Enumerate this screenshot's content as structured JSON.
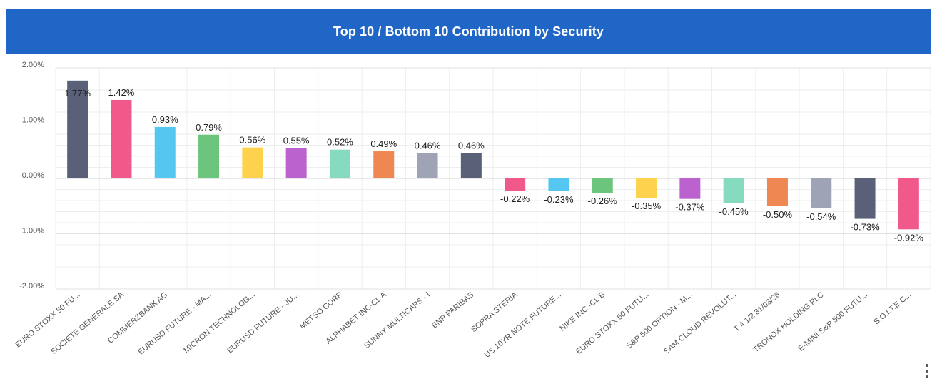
{
  "header": {
    "title": "Top 10 / Bottom 10 Contribution by Security"
  },
  "chart_data": {
    "type": "bar",
    "title": "Top 10 / Bottom 10 Contribution by Security",
    "xlabel": "",
    "ylabel": "",
    "ylim": [
      -2.0,
      2.0
    ],
    "yticks": [
      2.0,
      1.0,
      0.0,
      -1.0,
      -2.0
    ],
    "ytick_labels": [
      "2.00%",
      "1.00%",
      "0.00%",
      "-1.00%",
      "-2.00%"
    ],
    "grid": true,
    "legend": "none",
    "categories": [
      "EURO STOXX 50 FU...",
      "SOCIETE GENERALE SA",
      "COMMERZBANK AG",
      "EURUSD FUTURE - MA...",
      "MICRON TECHNOLOG...",
      "EURUSD FUTURE - JU...",
      "METSO CORP",
      "ALPHABET INC-CL A",
      "SUNNY MULTICAPS - I",
      "BNP PARIBAS",
      "SOPRA STERIA",
      "US 10YR NOTE FUTURE...",
      "NIKE INC -CL B",
      "EURO STOXX 50 FUTU...",
      "S&P 500 OPTION - M...",
      "SAM CLOUD REVOLUT...",
      "T 4 1/2 31/03/26",
      "TRONOX HOLDING PLC",
      "E-MINI S&P 500 FUTU...",
      "S.O.I.T.E.C..."
    ],
    "values": [
      1.77,
      1.42,
      0.93,
      0.79,
      0.56,
      0.55,
      0.52,
      0.49,
      0.46,
      0.46,
      -0.22,
      -0.23,
      -0.26,
      -0.35,
      -0.37,
      -0.45,
      -0.5,
      -0.54,
      -0.73,
      -0.92
    ],
    "data_labels": [
      "1.77%",
      "1.42%",
      "0.93%",
      "0.79%",
      "0.56%",
      "0.55%",
      "0.52%",
      "0.49%",
      "0.46%",
      "0.46%",
      "-0.22%",
      "-0.23%",
      "-0.26%",
      "-0.35%",
      "-0.37%",
      "-0.45%",
      "-0.50%",
      "-0.54%",
      "-0.73%",
      "-0.92%"
    ],
    "colors": [
      "#5b6079",
      "#f0598a",
      "#54c6f0",
      "#6cc57c",
      "#ffd24d",
      "#bb62cf",
      "#85dac0",
      "#ef8752",
      "#9ea4b5",
      "#5b6079",
      "#f0598a",
      "#54c6f0",
      "#6cc57c",
      "#ffd24d",
      "#bb62cf",
      "#85dac0",
      "#ef8752",
      "#9ea4b5",
      "#5b6079",
      "#f0598a"
    ]
  }
}
